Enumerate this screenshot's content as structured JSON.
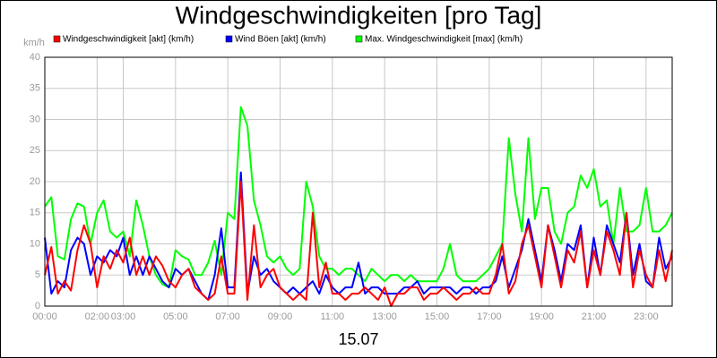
{
  "chart_data": {
    "type": "line",
    "title": "Windgeschwindigkeiten [pro Tag]",
    "y_label": "km/h",
    "x_label": "15.07",
    "x": [
      0,
      0.25,
      0.5,
      0.75,
      1,
      1.25,
      1.5,
      1.75,
      2,
      2.25,
      2.5,
      2.75,
      3,
      3.25,
      3.5,
      3.75,
      4,
      4.25,
      4.5,
      4.75,
      5,
      5.25,
      5.5,
      5.75,
      6,
      6.25,
      6.5,
      6.75,
      7,
      7.25,
      7.5,
      7.75,
      8,
      8.25,
      8.5,
      8.75,
      9,
      9.25,
      9.5,
      9.75,
      10,
      10.25,
      10.5,
      10.75,
      11,
      11.25,
      11.5,
      11.75,
      12,
      12.25,
      12.5,
      12.75,
      13,
      13.25,
      13.5,
      13.75,
      14,
      14.25,
      14.5,
      14.75,
      15,
      15.25,
      15.5,
      15.75,
      16,
      16.25,
      16.5,
      16.75,
      17,
      17.25,
      17.5,
      17.75,
      18,
      18.25,
      18.5,
      18.75,
      19,
      19.25,
      19.5,
      19.75,
      20,
      20.25,
      20.5,
      20.75,
      21,
      21.25,
      21.5,
      21.75,
      22,
      22.25,
      22.5,
      22.75,
      23,
      23.25,
      23.5,
      23.75,
      24
    ],
    "series": [
      {
        "name": "Max. Windgeschwindigkeit [max] (km/h)",
        "color": "#00ff00",
        "values": [
          16,
          17.5,
          8,
          7.5,
          14,
          16.5,
          16,
          10,
          15,
          17,
          12,
          11,
          12,
          8,
          17,
          13,
          8,
          5,
          3.5,
          3,
          9,
          8,
          7.5,
          5,
          5,
          7,
          10.5,
          5,
          15,
          14,
          32,
          29,
          17,
          13,
          8,
          7,
          8,
          6,
          5,
          6,
          20,
          16,
          8,
          6,
          6,
          5,
          6,
          6,
          5,
          4,
          6,
          5,
          4,
          5,
          5,
          4,
          5,
          4,
          4,
          4,
          4,
          6,
          10,
          5,
          4,
          4,
          4,
          5,
          6,
          8,
          10,
          27,
          18,
          12,
          27,
          14,
          19,
          19,
          12,
          10,
          15,
          16,
          21,
          19,
          22,
          16,
          17,
          10,
          19,
          12,
          12,
          13,
          19,
          12,
          12,
          13,
          15
        ]
      },
      {
        "name": "Wind Böen [akt] (km/h)",
        "color": "#0000ff",
        "values": [
          11,
          2,
          4,
          3,
          9,
          11,
          10,
          5,
          8,
          7,
          9,
          8,
          11,
          5,
          8,
          5,
          8,
          6,
          4,
          3,
          6,
          5,
          6,
          4,
          2,
          1,
          5,
          12.5,
          3,
          3,
          21.5,
          2,
          8,
          5,
          6,
          4,
          3,
          2,
          3,
          2,
          3,
          4,
          2,
          5,
          3,
          2,
          3,
          3,
          7,
          2,
          3,
          3,
          2,
          2,
          2,
          3,
          3,
          4,
          2,
          3,
          3,
          3,
          3,
          2,
          3,
          3,
          2,
          3,
          3,
          4,
          8,
          3,
          6,
          9,
          14,
          9,
          4,
          13,
          9,
          4,
          10,
          9,
          13,
          3,
          11,
          5,
          13,
          10,
          7,
          15,
          5,
          10,
          4,
          3,
          11,
          6,
          8
        ]
      },
      {
        "name": "Windgeschwindigkeit [akt] (km/h)",
        "color": "#ff0000",
        "values": [
          5,
          9.5,
          2,
          4,
          2.5,
          9,
          13,
          10,
          3,
          8,
          6,
          9,
          7,
          11,
          5,
          8,
          5,
          8,
          6.5,
          4,
          3,
          5,
          6,
          3,
          2,
          1,
          2,
          8,
          2,
          2,
          20,
          1,
          13,
          3,
          5,
          6,
          3,
          2,
          1,
          2,
          1,
          15,
          3,
          7,
          2,
          2,
          1,
          2,
          2,
          3,
          2,
          1,
          3,
          0,
          2,
          2,
          3,
          3,
          1,
          2,
          2,
          3,
          2,
          1,
          2,
          2,
          3,
          2,
          2,
          5,
          10,
          2,
          4,
          10,
          13,
          8,
          3,
          13,
          8,
          3,
          9,
          7,
          12,
          3,
          9,
          5,
          12,
          9,
          5,
          15,
          3,
          9,
          5,
          3,
          9,
          4,
          9
        ]
      }
    ],
    "legend_order": [
      2,
      1,
      0
    ],
    "xlim": [
      0,
      24
    ],
    "xticks": [
      {
        "value": 0,
        "label": "00:00"
      },
      {
        "value": 2,
        "label": "02:00"
      },
      {
        "value": 3,
        "label": "03:00"
      },
      {
        "value": 5,
        "label": "05:00"
      },
      {
        "value": 7,
        "label": "07:00"
      },
      {
        "value": 9,
        "label": "09:00"
      },
      {
        "value": 11,
        "label": "11:00"
      },
      {
        "value": 13,
        "label": "13:00"
      },
      {
        "value": 15,
        "label": "15:00"
      },
      {
        "value": 17,
        "label": "17:00"
      },
      {
        "value": 19,
        "label": "19:00"
      },
      {
        "value": 21,
        "label": "21:00"
      },
      {
        "value": 23,
        "label": "23:00"
      }
    ],
    "ylim": [
      0,
      40
    ],
    "yticks": [
      0,
      5,
      10,
      15,
      20,
      25,
      30,
      35,
      40
    ],
    "grid": true
  }
}
